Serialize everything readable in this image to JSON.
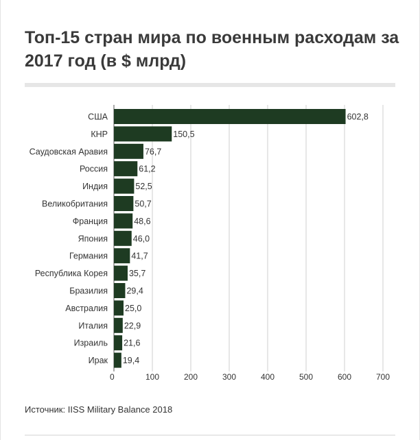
{
  "title": "Топ-15 стран мира по военным расходам за 2017 год (в $ млрд)",
  "source": "Источник: IISS Military Balance 2018",
  "chart_data": {
    "type": "bar",
    "orientation": "horizontal",
    "title": "Топ-15 стран мира по военным расходам за 2017 год (в $ млрд)",
    "categories": [
      "США",
      "КНР",
      "Саудовская Аравия",
      "Россия",
      "Индия",
      "Великобритания",
      "Франция",
      "Япония",
      "Германия",
      "Республика Корея",
      "Бразилия",
      "Австралия",
      "Италия",
      "Израиль",
      "Ирак"
    ],
    "values": [
      602.8,
      150.5,
      76.7,
      61.2,
      52.5,
      50.7,
      48.6,
      46.0,
      41.7,
      35.7,
      29.4,
      25.0,
      22.9,
      21.6,
      19.4
    ],
    "value_labels": [
      "602,8",
      "150,5",
      "76,7",
      "61,2",
      "52,5",
      "50,7",
      "48,6",
      "46,0",
      "41,7",
      "35,7",
      "29,4",
      "25,0",
      "22,9",
      "21,6",
      "19,4"
    ],
    "xlim": [
      0,
      700
    ],
    "xticks": [
      0,
      100,
      200,
      300,
      400,
      500,
      600,
      700
    ],
    "grid": true,
    "bar_color": "#1e3b22",
    "xlabel": "",
    "ylabel": ""
  }
}
